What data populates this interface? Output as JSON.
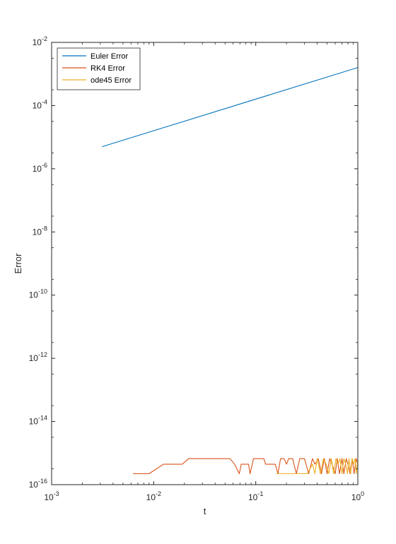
{
  "chart_data": {
    "type": "line",
    "title": "",
    "xlabel": "t",
    "ylabel": "Error",
    "xscale": "log",
    "yscale": "log",
    "xlim": [
      0.001,
      1
    ],
    "ylim": [
      1e-16,
      0.01
    ],
    "grid": false,
    "legend_position": "top-left",
    "x_ticks": [
      {
        "base": "10",
        "exp": "-3",
        "value": 0.001
      },
      {
        "base": "10",
        "exp": "-2",
        "value": 0.01
      },
      {
        "base": "10",
        "exp": "-1",
        "value": 0.1
      },
      {
        "base": "10",
        "exp": "0",
        "value": 1
      }
    ],
    "y_ticks": [
      {
        "base": "10",
        "exp": "-16",
        "value": 1e-16
      },
      {
        "base": "10",
        "exp": "-14",
        "value": 1e-14
      },
      {
        "base": "10",
        "exp": "-12",
        "value": 1e-12
      },
      {
        "base": "10",
        "exp": "-10",
        "value": 1e-10
      },
      {
        "base": "10",
        "exp": "-8",
        "value": 1e-08
      },
      {
        "base": "10",
        "exp": "-6",
        "value": 1e-06
      },
      {
        "base": "10",
        "exp": "-4",
        "value": 0.0001
      },
      {
        "base": "10",
        "exp": "-2",
        "value": 0.01
      }
    ],
    "series": [
      {
        "name": "Euler Error",
        "color": "#0072BD",
        "x": [
          0.003125,
          0.01,
          0.1,
          1
        ],
        "y": [
          5e-06,
          1.6e-05,
          0.00016,
          0.0016
        ]
      },
      {
        "name": "RK4 Error",
        "color": "#D95319",
        "x": [
          0.00625,
          0.009,
          0.0125,
          0.019,
          0.022,
          0.056,
          0.062,
          0.069,
          0.072,
          0.085,
          0.088,
          0.095,
          0.12,
          0.125,
          0.155,
          0.165,
          0.175,
          0.19,
          0.2,
          0.21,
          0.23,
          0.25,
          0.27,
          0.3,
          0.33,
          0.36,
          0.38,
          0.41,
          0.44,
          0.47,
          0.5,
          0.53,
          0.56,
          0.6,
          0.63,
          0.66,
          0.7,
          0.73,
          0.77,
          0.8,
          0.84,
          0.88,
          0.92,
          0.96,
          1.0
        ],
        "y": [
          2.22e-16,
          2.22e-16,
          4.44e-16,
          4.44e-16,
          6.66e-16,
          6.66e-16,
          4.44e-16,
          2.22e-16,
          4.44e-16,
          4.44e-16,
          2.22e-16,
          6.66e-16,
          6.66e-16,
          4.44e-16,
          4.44e-16,
          2.22e-16,
          6.66e-16,
          6.66e-16,
          4.44e-16,
          6.66e-16,
          6.66e-16,
          2.22e-16,
          6.66e-16,
          6.66e-16,
          2.22e-16,
          6.66e-16,
          4.44e-16,
          6.66e-16,
          2.22e-16,
          6.66e-16,
          2.22e-16,
          6.66e-16,
          4.44e-16,
          2.22e-16,
          6.66e-16,
          2.22e-16,
          6.66e-16,
          2.22e-16,
          6.66e-16,
          4.44e-16,
          2.22e-16,
          6.66e-16,
          2.22e-16,
          6.66e-16,
          4.44e-16
        ]
      },
      {
        "name": "ode45 Error",
        "color": "#EDB120",
        "x": [
          0.16,
          0.2,
          0.28,
          0.32,
          0.36,
          0.38,
          0.4,
          0.43,
          0.46,
          0.49,
          0.52,
          0.55,
          0.58,
          0.61,
          0.64,
          0.67,
          0.7,
          0.73,
          0.76,
          0.79,
          0.82,
          0.85,
          0.88,
          0.91,
          0.94,
          0.97,
          1.0
        ],
        "y": [
          2.22e-16,
          2.22e-16,
          2.22e-16,
          2.22e-16,
          4.44e-16,
          2.22e-16,
          6.66e-16,
          2.22e-16,
          6.66e-16,
          4.44e-16,
          2.22e-16,
          6.66e-16,
          2.22e-16,
          6.66e-16,
          4.44e-16,
          6.66e-16,
          2.22e-16,
          6.66e-16,
          4.44e-16,
          2.22e-16,
          6.66e-16,
          2.22e-16,
          6.66e-16,
          4.44e-16,
          6.66e-16,
          2.22e-16,
          6.66e-16
        ]
      }
    ]
  }
}
